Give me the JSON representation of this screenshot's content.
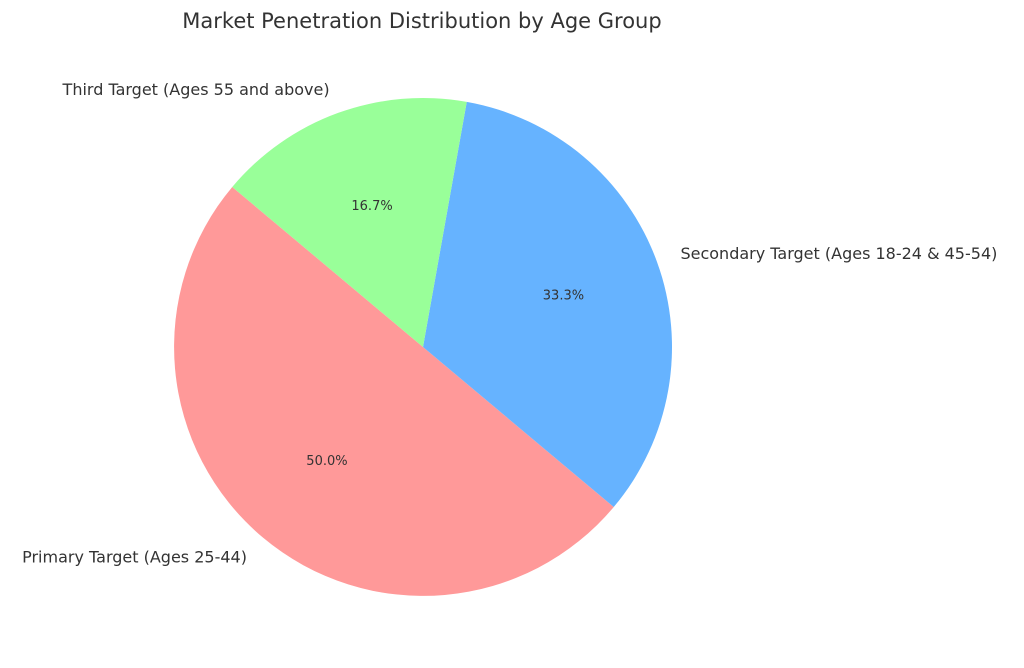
{
  "chart_data": {
    "type": "pie",
    "title": "Market Penetration Distribution by Age Group",
    "slices": [
      {
        "label": "Primary Target (Ages 25-44)",
        "value": 50.0,
        "pct_label": "50.0%",
        "color": "#ff9999"
      },
      {
        "label": "Secondary Target (Ages 18-24 & 45-54)",
        "value": 33.3,
        "pct_label": "33.3%",
        "color": "#66b3ff"
      },
      {
        "label": "Third Target (Ages 55 and above)",
        "value": 16.7,
        "pct_label": "16.7%",
        "color": "#99ff99"
      }
    ],
    "start_angle_deg": 140,
    "direction": "counterclockwise",
    "legend": "none"
  }
}
